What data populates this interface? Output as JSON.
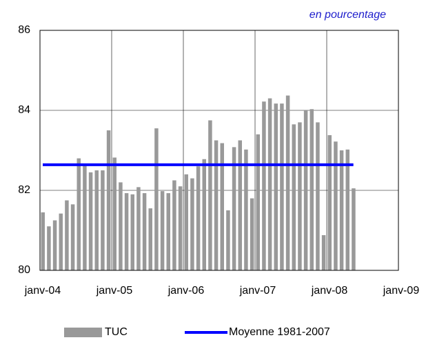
{
  "chart_data": {
    "type": "bar",
    "subtitle": "en pourcentage",
    "categories": [
      "janv-04",
      null,
      null,
      null,
      null,
      null,
      null,
      null,
      null,
      null,
      null,
      null,
      "janv-05",
      null,
      null,
      null,
      null,
      null,
      null,
      null,
      null,
      null,
      null,
      null,
      "janv-06",
      null,
      null,
      null,
      null,
      null,
      null,
      null,
      null,
      null,
      null,
      null,
      "janv-07",
      null,
      null,
      null,
      null,
      null,
      null,
      null,
      null,
      null,
      null,
      null,
      "janv-08",
      null,
      null,
      null,
      null,
      null,
      null,
      null,
      null,
      null,
      null,
      null,
      "janv-09"
    ],
    "series": [
      {
        "name": "TUC",
        "color": "#999999",
        "values": [
          81.45,
          81.1,
          81.25,
          81.42,
          81.75,
          81.65,
          82.8,
          82.65,
          82.45,
          82.5,
          82.5,
          83.5,
          82.82,
          82.2,
          81.93,
          81.9,
          82.08,
          81.93,
          81.55,
          83.55,
          81.98,
          81.93,
          82.25,
          82.1,
          82.4,
          82.3,
          82.6,
          82.78,
          83.75,
          83.25,
          83.18,
          81.5,
          83.08,
          83.25,
          83.02,
          81.8,
          83.4,
          84.22,
          84.3,
          84.17,
          84.17,
          84.37,
          83.65,
          83.7,
          84.0,
          84.03,
          83.7,
          80.88,
          83.38,
          83.22,
          83.0,
          83.02,
          82.05,
          null,
          null,
          null,
          null,
          null,
          null,
          null,
          null
        ]
      }
    ],
    "mean": {
      "name": "Moyenne 1981-2007",
      "value": 82.64,
      "color": "#0000ff"
    },
    "ylim": [
      80,
      86
    ],
    "yticks": [
      80,
      82,
      84,
      86
    ],
    "grid": true
  }
}
